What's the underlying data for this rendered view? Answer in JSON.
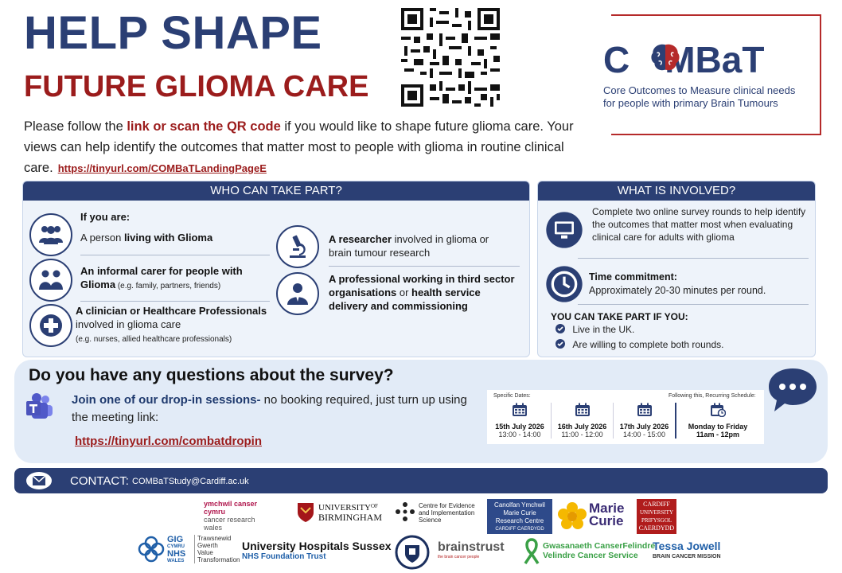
{
  "header": {
    "title_line1": "HELP SHAPE",
    "title_line2": "FUTURE GLIOMA CARE",
    "qr_label": "qr-code"
  },
  "logo": {
    "word_left": "C",
    "word_right": "MBaT",
    "subtitle_line1": "Core Outcomes to Measure clinical needs",
    "subtitle_line2": "for people with primary Brain Tumours",
    "border_color": "#b52a2a"
  },
  "intro": {
    "part1": "Please follow the ",
    "highlight": "link or scan the QR code",
    "part2": " if you would like to shape future glioma care. Your views can help identify the outcomes that matter most to people with glioma in routine clinical care.",
    "link": "https://tinyurl.com/COMBaTLandingPageE"
  },
  "who": {
    "heading": "WHO CAN TAKE PART?",
    "if_you_are": "If you are:",
    "living_pre": "A person ",
    "living_bold": "living with Glioma",
    "carer_bold": "An informal carer for people with Glioma",
    "carer_small": " (e.g. family, partners, friends)",
    "clinician_bold": "A clinician or Healthcare Professionals",
    "clinician_rest": " involved in glioma care",
    "clinician_small": "(e.g. nurses, allied healthcare professionals)",
    "researcher_bold": "A researcher",
    "researcher_rest": " involved in glioma or brain tumour research",
    "professional_bold1": "A professional working in third sector organisations",
    "professional_mid": " or ",
    "professional_bold2": "health service delivery and commissioning"
  },
  "involved": {
    "heading": "WHAT IS INVOLVED?",
    "survey_text": "Complete two online survey rounds to help identify the outcomes that matter most when evaluating clinical care for adults with glioma",
    "time_label": "Time commitment:",
    "time_text": "Approximately 20-30 minutes per round.",
    "eligible_heading": "YOU CAN TAKE PART IF YOU:",
    "eligible": [
      "Live in the UK.",
      "Are willing to complete both rounds."
    ]
  },
  "questions": {
    "title": "Do you have any questions about the survey?",
    "join_bold": "Join one of our drop-in sessions-",
    "join_rest": " no booking required, just turn up using the meeting link:",
    "link": "https://tinyurl.com/combatdropin",
    "specific_label": "Specific Dates:",
    "recurring_label": "Following this, Recurring Schedule:",
    "dates": [
      {
        "date": "15th July 2026",
        "time": "13:00 - 14:00"
      },
      {
        "date": "16th July 2026",
        "time": "11:00 - 12:00"
      },
      {
        "date": "17th July 2026",
        "time": "14:00 - 15:00"
      }
    ],
    "recurring_days": "Monday to Friday",
    "recurring_time": "11am - 12pm"
  },
  "contact": {
    "label": "CONTACT:",
    "email": "COMBaTStudy@Cardiff.ac.uk"
  },
  "logos": {
    "ycr1": "ymchwil canser",
    "ycr2": "cymru",
    "ycr3": "cancer research",
    "ycr4": "wales",
    "uob1": "UNIVERSITY",
    "uob2": "OF",
    "uob3": "BIRMINGHAM",
    "ceis1": "Centre for Evidence",
    "ceis2": "and Implementation",
    "ceis3": "Science",
    "mc1": "Canolfan Ymchwil",
    "mc2": "Marie Curie",
    "mc3": "Research Centre",
    "mc4": "CARDIFF CAERDYDD",
    "marie1": "Marie",
    "marie2": "Curie",
    "cardiff1": "CARDIFF",
    "cardiff2": "UNIVERSITY",
    "cardiff3": "PRIFYSGOL",
    "cardiff4": "CAERDYDD",
    "nhs1": "GIG",
    "nhs2": "CYMRU",
    "nhs3": "NHS",
    "nhs4": "WALES",
    "nhs5": "Trawsnewid",
    "nhs6": "Gwerth",
    "nhs7": "Value",
    "nhs8": "Transformation",
    "uhs1": "University Hospitals Sussex",
    "uhs2": "NHS Foundation Trust",
    "brainstrust1": "brainstrust",
    "brainstrust2": "the brain cancer people",
    "velindre1": "Gwasanaeth CanserFelindre",
    "velindre2": "Velindre Cancer Service",
    "tj1": "Tessa Jowell",
    "tj2": "BRAIN CANCER MISSION"
  }
}
